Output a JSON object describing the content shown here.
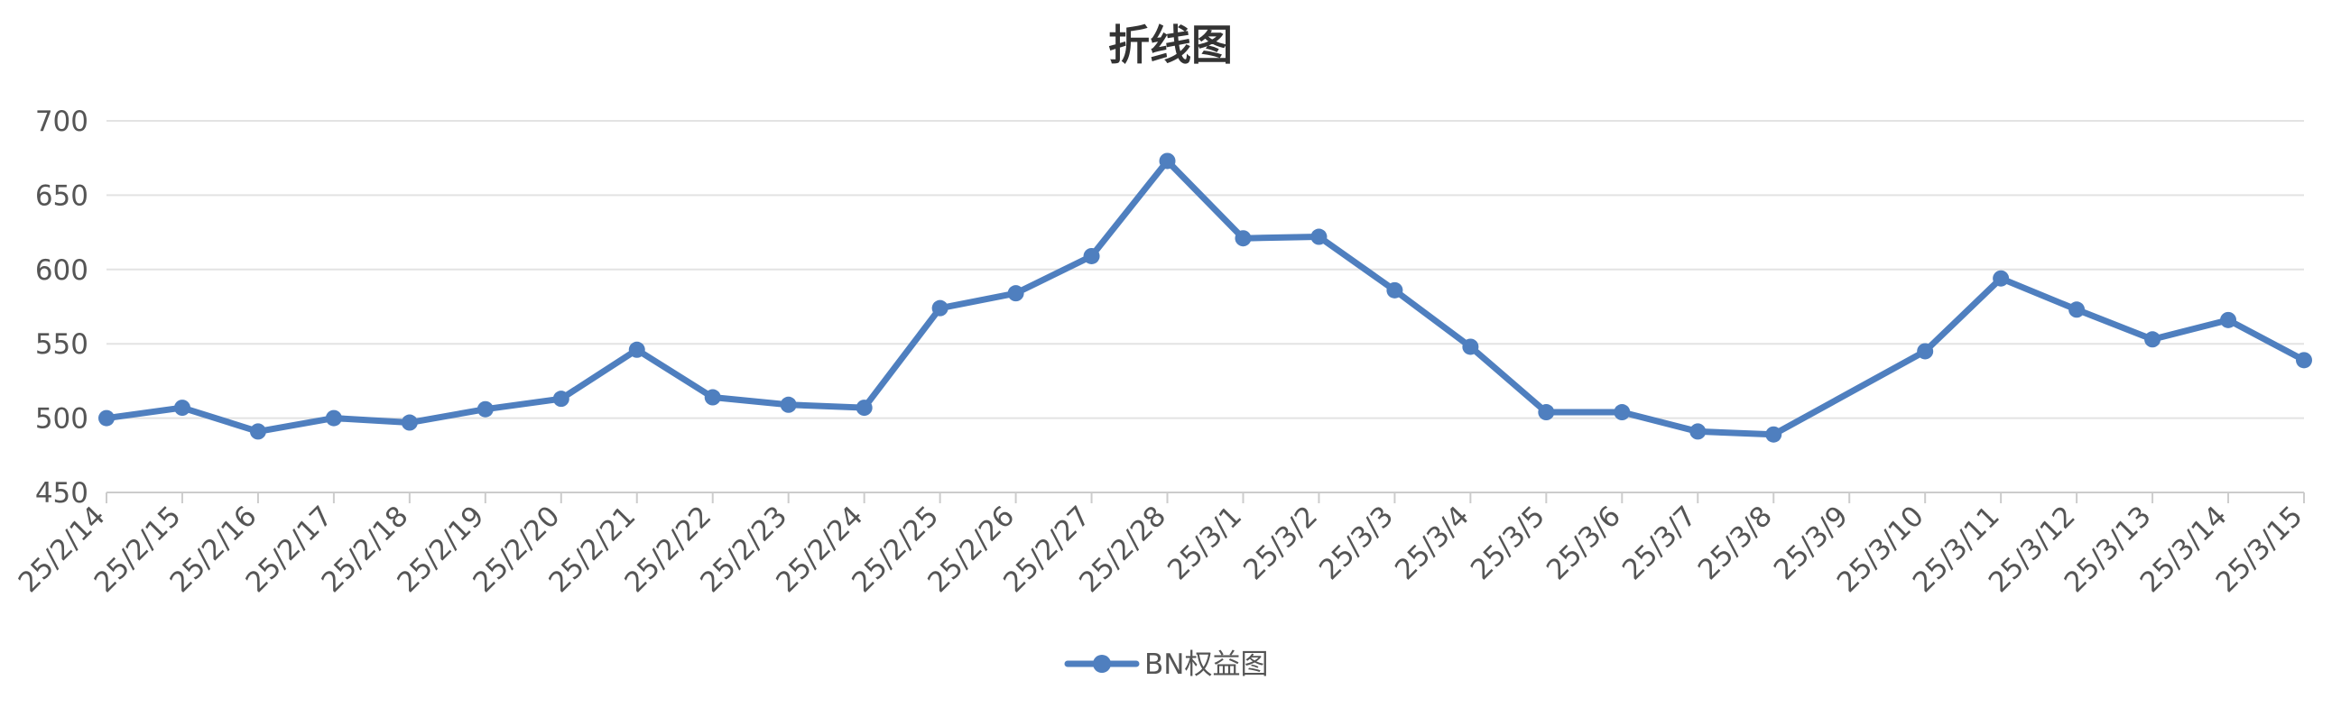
{
  "chart_data": {
    "type": "line",
    "title": "折线图",
    "xlabel": "",
    "ylabel": "",
    "ylim": [
      450,
      700
    ],
    "yticks": [
      450,
      500,
      550,
      600,
      650,
      700
    ],
    "grid": true,
    "legend_position": "bottom-center",
    "categories": [
      "25/2/14",
      "25/2/15",
      "25/2/16",
      "25/2/17",
      "25/2/18",
      "25/2/19",
      "25/2/20",
      "25/2/21",
      "25/2/22",
      "25/2/23",
      "25/2/24",
      "25/2/25",
      "25/2/26",
      "25/2/27",
      "25/2/28",
      "25/3/1",
      "25/3/2",
      "25/3/3",
      "25/3/4",
      "25/3/5",
      "25/3/6",
      "25/3/7",
      "25/3/8",
      "25/3/9",
      "25/3/10",
      "25/3/11",
      "25/3/12",
      "25/3/13",
      "25/3/14",
      "25/3/15"
    ],
    "series": [
      {
        "name": "BN权益图",
        "color": "#4f7fbf",
        "values": [
          500,
          507,
          491,
          500,
          497,
          506,
          513,
          546,
          514,
          509,
          507,
          574,
          584,
          609,
          673,
          621,
          622,
          586,
          548,
          504,
          504,
          491,
          489,
          null,
          545,
          594,
          573,
          553,
          566,
          539
        ]
      }
    ]
  }
}
